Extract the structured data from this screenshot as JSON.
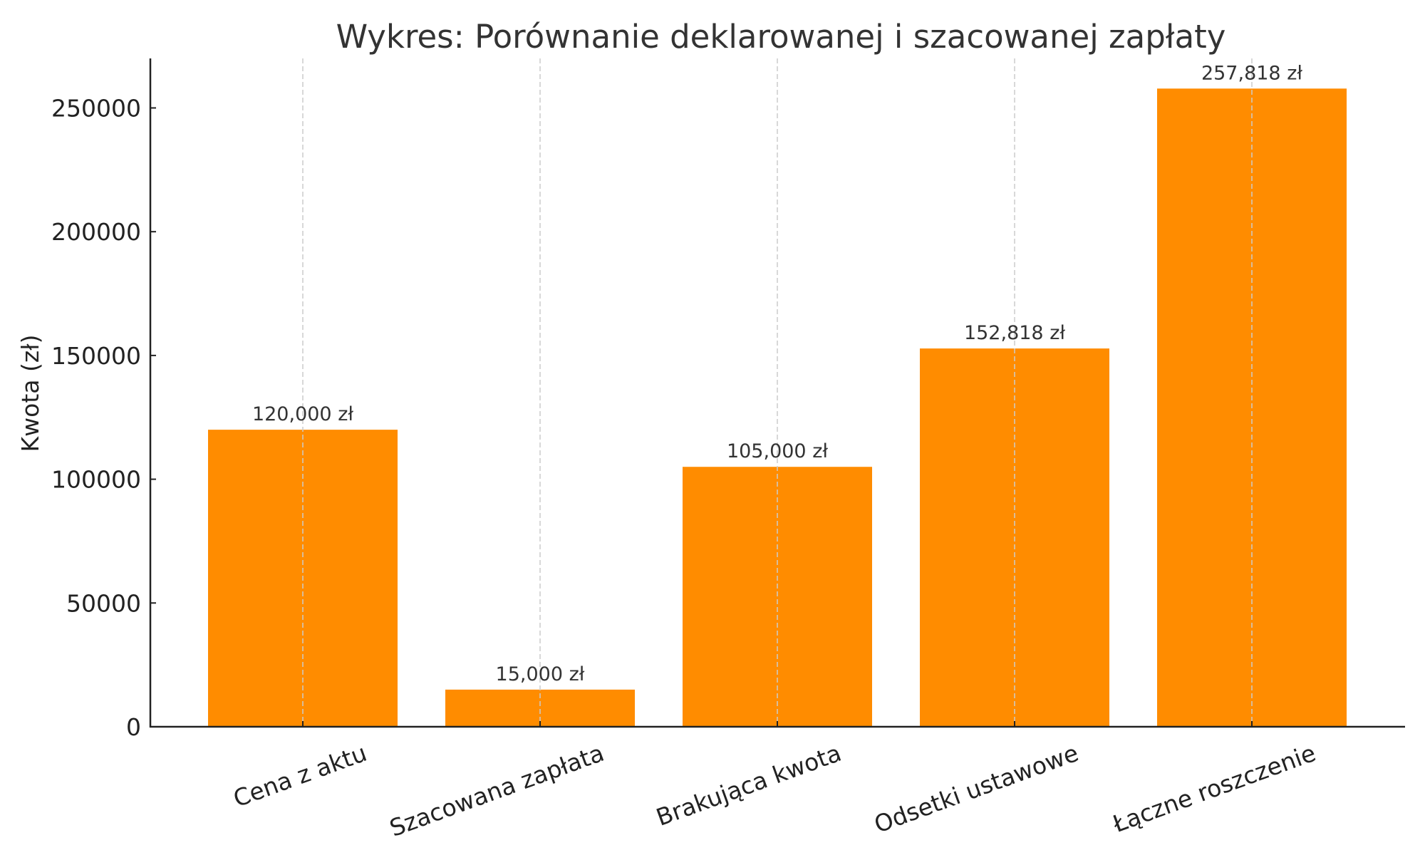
{
  "chart_data": {
    "type": "bar",
    "title": "Wykres: Porównanie deklarowanej i szacowanej zapłaty",
    "xlabel": "",
    "ylabel": "Kwota (zł)",
    "categories": [
      "Cena z aktu",
      "Szacowana zapłata",
      "Brakująca kwota",
      "Odsetki ustawowe",
      "Łączne roszczenie"
    ],
    "values": [
      120000,
      15000,
      105000,
      152818,
      257818
    ],
    "value_labels": [
      "120,000 zł",
      "15,000 zł",
      "105,000 zł",
      "152,818 zł",
      "257,818 zł"
    ],
    "ylim": [
      0,
      270000
    ],
    "yticks": [
      0,
      50000,
      100000,
      150000,
      200000,
      250000
    ],
    "ytick_labels": [
      "0",
      "50000",
      "100000",
      "150000",
      "200000",
      "250000"
    ],
    "xtick_rotation": 20,
    "grid": {
      "x": true,
      "y": false,
      "style": "dashed"
    },
    "legend": null,
    "colors": {
      "bar": "#FF8C00",
      "axis": "#222222",
      "grid": "#cccccc",
      "title": "#333333"
    }
  }
}
